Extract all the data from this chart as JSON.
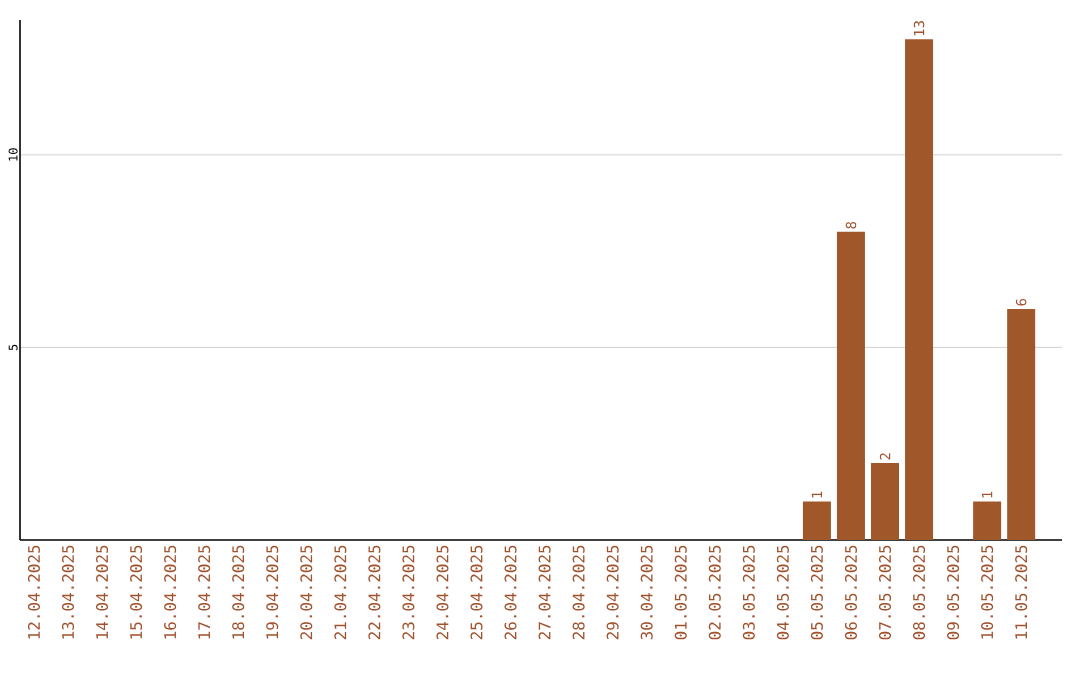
{
  "chart_data": {
    "type": "bar",
    "categories": [
      "12.04.2025",
      "13.04.2025",
      "14.04.2025",
      "15.04.2025",
      "16.04.2025",
      "17.04.2025",
      "18.04.2025",
      "19.04.2025",
      "20.04.2025",
      "21.04.2025",
      "22.04.2025",
      "23.04.2025",
      "24.04.2025",
      "25.04.2025",
      "26.04.2025",
      "27.04.2025",
      "28.04.2025",
      "29.04.2025",
      "30.04.2025",
      "01.05.2025",
      "02.05.2025",
      "03.05.2025",
      "04.05.2025",
      "05.05.2025",
      "06.05.2025",
      "07.05.2025",
      "08.05.2025",
      "09.05.2025",
      "10.05.2025",
      "11.05.2025"
    ],
    "values": [
      0,
      0,
      0,
      0,
      0,
      0,
      0,
      0,
      0,
      0,
      0,
      0,
      0,
      0,
      0,
      0,
      0,
      0,
      0,
      0,
      0,
      0,
      0,
      1,
      8,
      2,
      13,
      0,
      1,
      6
    ],
    "value_labels": [
      null,
      null,
      null,
      null,
      null,
      null,
      null,
      null,
      null,
      null,
      null,
      null,
      null,
      null,
      null,
      null,
      null,
      null,
      null,
      null,
      null,
      null,
      null,
      "1",
      "8",
      "2",
      "13",
      null,
      "1",
      "6"
    ],
    "color": "#a0572a",
    "ylim": [
      0,
      13.5
    ],
    "yticks": [
      5,
      10
    ],
    "grid": "y"
  }
}
